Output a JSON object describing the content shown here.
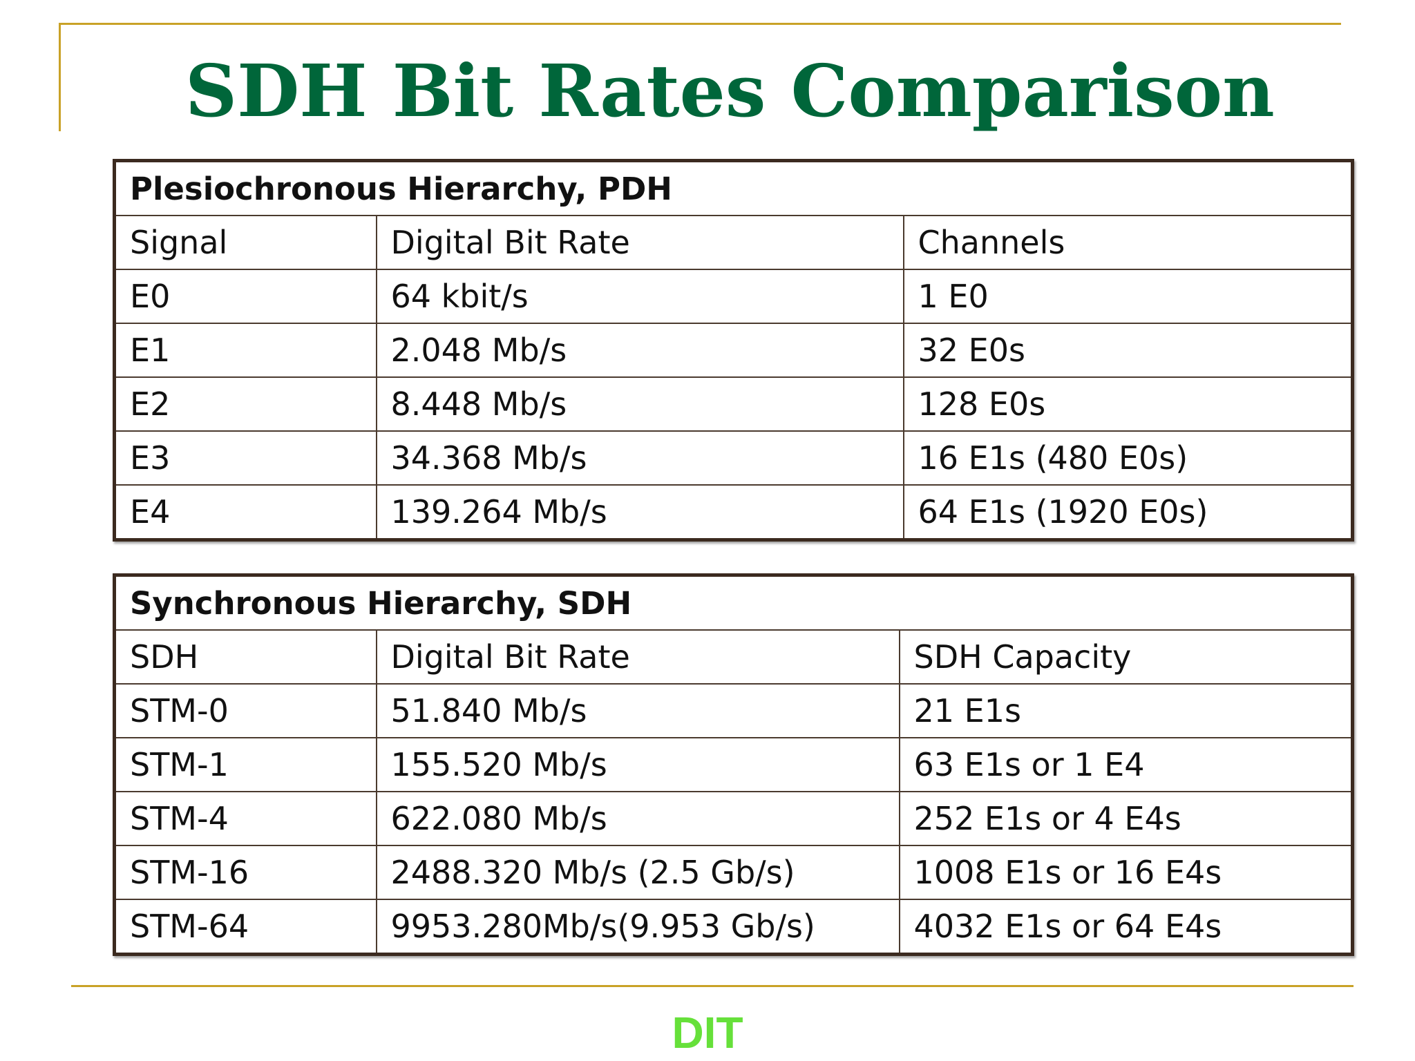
{
  "slide": {
    "title": "SDH Bit Rates Comparison",
    "footer": "DIT",
    "colors": {
      "title": "#00663A",
      "accent_line": "#C9A227",
      "footer": "#66E03A",
      "table_border": "#3B2A1F"
    }
  },
  "pdh": {
    "caption": "Plesiochronous Hierarchy, PDH",
    "headers": [
      "Signal",
      "Digital Bit Rate",
      "Channels"
    ],
    "rows": [
      [
        "E0",
        "64 kbit/s",
        "1 E0"
      ],
      [
        "E1",
        "2.048 Mb/s",
        "32 E0s"
      ],
      [
        "E2",
        "8.448 Mb/s",
        "128 E0s"
      ],
      [
        "E3",
        "34.368 Mb/s",
        "16 E1s (480 E0s)"
      ],
      [
        "E4",
        "139.264 Mb/s",
        "64 E1s (1920 E0s)"
      ]
    ]
  },
  "sdh": {
    "caption": "Synchronous Hierarchy, SDH",
    "headers": [
      "SDH",
      "Digital Bit Rate",
      "SDH Capacity"
    ],
    "rows": [
      [
        "STM-0",
        "51.840 Mb/s",
        "21 E1s"
      ],
      [
        "STM-1",
        "155.520 Mb/s",
        "63 E1s or 1 E4"
      ],
      [
        "STM-4",
        "622.080 Mb/s",
        "252 E1s or 4 E4s"
      ],
      [
        "STM-16",
        "2488.320 Mb/s (2.5 Gb/s)",
        "1008 E1s or 16 E4s"
      ],
      [
        "STM-64",
        "9953.280Mb/s(9.953 Gb/s)",
        "4032 E1s or 64 E4s"
      ]
    ]
  }
}
